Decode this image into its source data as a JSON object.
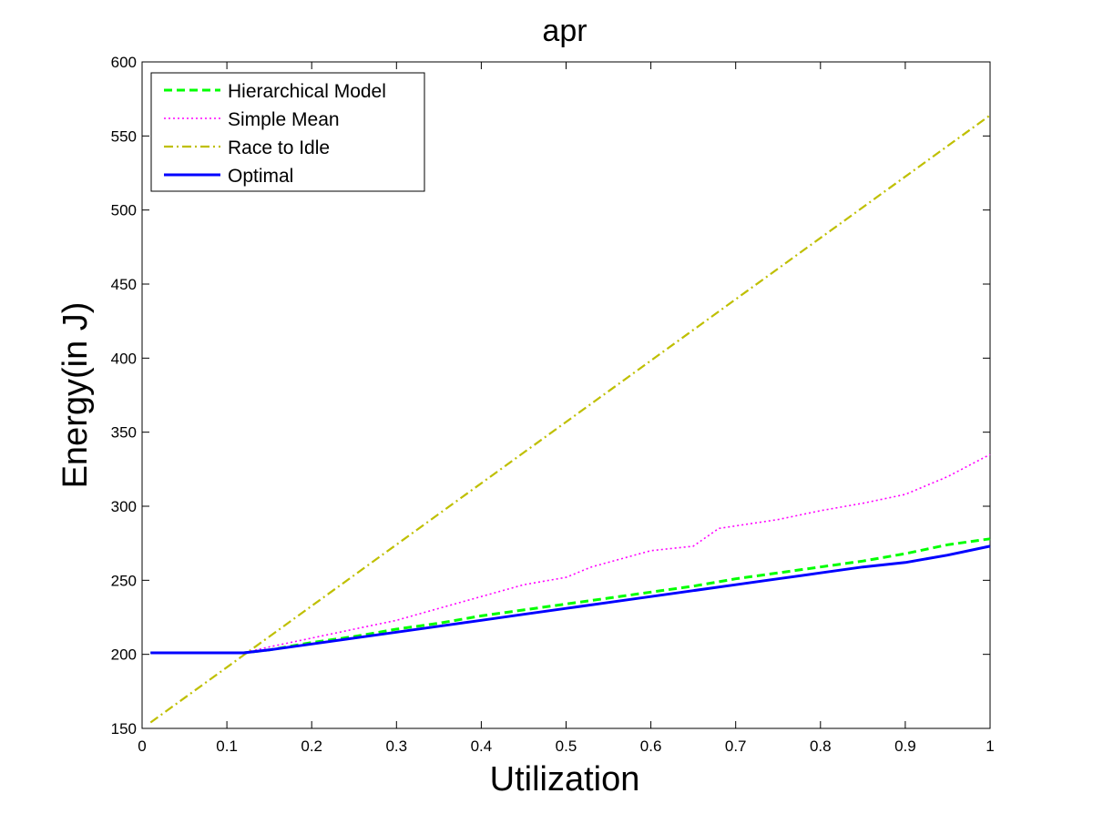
{
  "chart_data": {
    "type": "line",
    "title": "apr",
    "xlabel": "Utilization",
    "ylabel": "Energy(in J)",
    "xlim": [
      0,
      1
    ],
    "ylim": [
      150,
      600
    ],
    "xticks": [
      "0",
      "0.1",
      "0.2",
      "0.3",
      "0.4",
      "0.5",
      "0.6",
      "0.7",
      "0.8",
      "0.9",
      "1"
    ],
    "yticks": [
      "150",
      "200",
      "250",
      "300",
      "350",
      "400",
      "450",
      "500",
      "550",
      "600"
    ],
    "grid": false,
    "legend_position": "top-left",
    "series": [
      {
        "name": "Hierarchical Model",
        "color": "#00ff00",
        "style": "dashed",
        "x": [
          0.01,
          0.05,
          0.1,
          0.12,
          0.15,
          0.2,
          0.25,
          0.3,
          0.35,
          0.4,
          0.45,
          0.5,
          0.55,
          0.6,
          0.65,
          0.7,
          0.75,
          0.8,
          0.85,
          0.9,
          0.95,
          1.0
        ],
        "y": [
          201,
          201,
          201,
          201,
          203,
          208,
          212,
          217,
          221,
          226,
          230,
          234,
          238,
          242,
          246,
          251,
          255,
          259,
          263,
          268,
          274,
          278
        ]
      },
      {
        "name": "Simple Mean",
        "color": "#ff00ff",
        "style": "dotted",
        "x": [
          0.01,
          0.05,
          0.1,
          0.12,
          0.15,
          0.2,
          0.25,
          0.3,
          0.35,
          0.4,
          0.45,
          0.5,
          0.53,
          0.6,
          0.65,
          0.68,
          0.75,
          0.8,
          0.85,
          0.9,
          0.95,
          1.0
        ],
        "y": [
          201,
          201,
          201,
          201,
          205,
          211,
          217,
          223,
          231,
          239,
          247,
          252,
          259,
          270,
          273,
          285,
          291,
          297,
          302,
          308,
          320,
          335
        ]
      },
      {
        "name": "Race to Idle",
        "color": "#bfbf00",
        "style": "dashdot",
        "x": [
          0.01,
          1.0
        ],
        "y": [
          154,
          564
        ]
      },
      {
        "name": "Optimal",
        "color": "#0000ff",
        "style": "solid",
        "x": [
          0.01,
          0.05,
          0.1,
          0.12,
          0.15,
          0.2,
          0.25,
          0.3,
          0.35,
          0.4,
          0.45,
          0.5,
          0.55,
          0.6,
          0.65,
          0.7,
          0.75,
          0.8,
          0.85,
          0.9,
          0.95,
          1.0
        ],
        "y": [
          201,
          201,
          201,
          201,
          203,
          207,
          211,
          215,
          219,
          223,
          227,
          231,
          235,
          239,
          243,
          247,
          251,
          255,
          259,
          262,
          267,
          273
        ]
      }
    ]
  }
}
